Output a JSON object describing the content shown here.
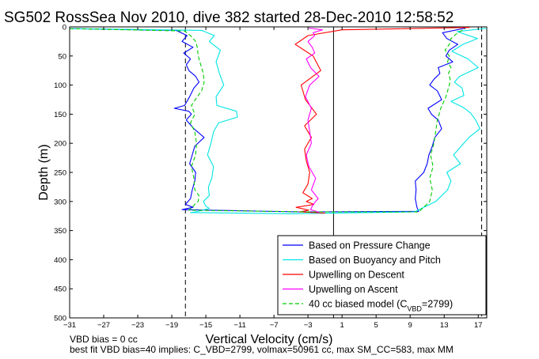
{
  "chart_data": {
    "type": "line",
    "title": "SG502 RossSea Nov 2010, dive 382 started 28-Dec-2010 12:58:52",
    "xlabel": "Vertical Velocity (cm/s)",
    "ylabel": "Depth (m)",
    "xlim": [
      -31,
      18
    ],
    "ylim": [
      0,
      500
    ],
    "y_reversed": true,
    "x_ticks": [
      -31,
      -27,
      -23,
      -19,
      -15,
      -11,
      -7,
      -3,
      1,
      5,
      9,
      13,
      17
    ],
    "y_ticks": [
      0,
      50,
      100,
      150,
      200,
      250,
      300,
      350,
      400,
      450,
      500
    ],
    "grid": false,
    "legend_position": "bottom-right",
    "reference_lines": [
      {
        "orientation": "vertical",
        "x": -17.4,
        "style": "dashed",
        "color": "#000000"
      },
      {
        "orientation": "vertical",
        "x": 0,
        "style": "solid",
        "color": "#000000"
      },
      {
        "orientation": "vertical",
        "x": 17.4,
        "style": "dashed",
        "color": "#000000"
      }
    ],
    "series": [
      {
        "name": "Based on Pressure Change",
        "color": "#0000ff",
        "style": "solid",
        "x": [
          -31,
          -18.5,
          -17.2,
          -17.8,
          -16.5,
          -17.6,
          -16.8,
          -17.3,
          -17.0,
          -16.2,
          -15.8,
          -16.4,
          -16.9,
          -17.5,
          -18.7,
          -17.0,
          -16.7,
          -17.3,
          -16.4,
          -15.2,
          -16.3,
          -16.6,
          -16.9,
          -16.2,
          -16.3,
          -16.6,
          -16.8,
          -17.4,
          -16.5,
          -17.8,
          -4,
          10,
          9.8,
          9.6,
          9.7,
          9.6,
          10.6,
          11.0,
          11.2,
          11.6,
          11.9,
          12.7,
          12.3,
          11.5,
          11.1,
          12.7,
          12.2,
          11.3,
          11.8,
          12.5,
          12.3,
          14.0,
          13.2,
          13.6,
          14.6,
          13.3,
          12.8,
          15.5
        ],
        "y": [
          3,
          6,
          15,
          25,
          35,
          45,
          55,
          65,
          75,
          85,
          95,
          105,
          120,
          135,
          140,
          145,
          150,
          160,
          175,
          190,
          205,
          220,
          235,
          250,
          265,
          280,
          295,
          305,
          310,
          314,
          318,
          317,
          310,
          295,
          280,
          265,
          250,
          235,
          220,
          205,
          190,
          175,
          160,
          150,
          140,
          125,
          110,
          100,
          90,
          80,
          70,
          60,
          50,
          40,
          30,
          20,
          10,
          2
        ]
      },
      {
        "name": "Based on Buoyancy and Pitch",
        "color": "#00e5e5",
        "style": "solid",
        "x": [
          -31,
          -15.5,
          -14.0,
          -14.6,
          -13.3,
          -13.8,
          -13.4,
          -12.9,
          -13.8,
          -13.7,
          -11.4,
          -11.3,
          -13.5,
          -14.1,
          -14.4,
          -14.8,
          -14.1,
          -14.3,
          -14.7,
          -14.6,
          -15.3,
          -15.0,
          -14.6,
          -15.7,
          -16.2,
          -16.8,
          -5,
          9.5,
          12.0,
          13.4,
          13.8,
          13.3,
          14.9,
          14.1,
          15.0,
          15.9,
          17.2,
          16.7,
          16.1,
          15.2,
          13.8,
          15.3,
          15.1,
          14.2,
          14.8,
          17.0,
          15.8,
          13.9,
          15.2,
          16.9,
          14.5,
          18.2
        ],
        "y": [
          3,
          6,
          15,
          25,
          40,
          60,
          80,
          100,
          120,
          135,
          145,
          155,
          165,
          180,
          200,
          220,
          240,
          260,
          275,
          290,
          300,
          308,
          312,
          316,
          318,
          319,
          321,
          318,
          300,
          280,
          265,
          250,
          235,
          220,
          205,
          190,
          175,
          160,
          148,
          138,
          128,
          118,
          105,
          95,
          85,
          70,
          55,
          42,
          30,
          20,
          8,
          2
        ]
      },
      {
        "name": "Upwelling on Descent",
        "color": "#ff0000",
        "style": "solid",
        "x": [
          16,
          1,
          -3.0,
          -4.5,
          -2.4,
          -1.5,
          -3.8,
          -3.3,
          -2.0,
          -3.4,
          -2.6,
          -3.4,
          -3.2,
          -2.8,
          -3.0,
          -3.6,
          -2.5,
          -3.2,
          -2.3,
          -4.4,
          -2.9,
          -4.0,
          -1.0
        ],
        "y": [
          1,
          5,
          15,
          30,
          50,
          75,
          100,
          125,
          150,
          170,
          190,
          210,
          230,
          250,
          270,
          285,
          295,
          300,
          305,
          310,
          315,
          318,
          320
        ]
      },
      {
        "name": "Upwelling on Ascent",
        "color": "#ff00ff",
        "style": "solid",
        "x": [
          -1.6,
          -2.7,
          -2.4,
          -1.8,
          -2.6,
          -2.1,
          -2.9,
          -3.2,
          -2.6,
          -2.8,
          -3.0,
          -2.6,
          -3.3,
          -2.8,
          -1.7,
          -2.7,
          -3.2,
          -2.2,
          -2.5,
          -3.0,
          -2.2,
          -2.4,
          -1.3,
          -2.9
        ],
        "y": [
          319,
          314,
          305,
          295,
          280,
          260,
          240,
          220,
          200,
          180,
          160,
          140,
          120,
          100,
          85,
          70,
          55,
          45,
          35,
          25,
          15,
          10,
          5,
          2
        ]
      },
      {
        "name": "40 cc biased model (C_VBD=2799)",
        "legend_label": "40 cc biased model (C",
        "legend_subscript": "VBD",
        "legend_suffix": "=2799)",
        "color": "#00cc00",
        "style": "dashed",
        "x": [
          -31,
          -17.5,
          -16.8,
          -16.2,
          -16.0,
          -15.9,
          -15.6,
          -15.3,
          -15.2,
          -15.5,
          -16.0,
          -16.7,
          -16.3,
          -16.8,
          -16.3,
          -16.1,
          -16.2,
          -16.7,
          -16.4,
          -16.3,
          -15.8,
          -15.9,
          -16.3,
          -16.6,
          -17.0,
          -3,
          10,
          11.3,
          11.6,
          11.3,
          11.7,
          11.4,
          11.8,
          12.0,
          12.2,
          12.6,
          13.2,
          13.6,
          13.7,
          13.5,
          13.8,
          13.4,
          13.6,
          13.1,
          13.6,
          13.8,
          14.6,
          15.5
        ],
        "y": [
          3,
          7,
          15,
          25,
          35,
          50,
          65,
          80,
          95,
          110,
          120,
          135,
          150,
          165,
          180,
          200,
          220,
          240,
          260,
          280,
          290,
          300,
          305,
          310,
          315,
          318,
          318,
          300,
          280,
          260,
          240,
          220,
          200,
          180,
          160,
          140,
          120,
          100,
          90,
          80,
          70,
          60,
          50,
          40,
          30,
          20,
          10,
          3
        ]
      }
    ],
    "footnotes": [
      "VBD bias = 0 cc",
      "best fit VBD bias=40 implies: C_VBD=2799, volmax=50961 cc, max SM_CC=583, max MM"
    ]
  }
}
